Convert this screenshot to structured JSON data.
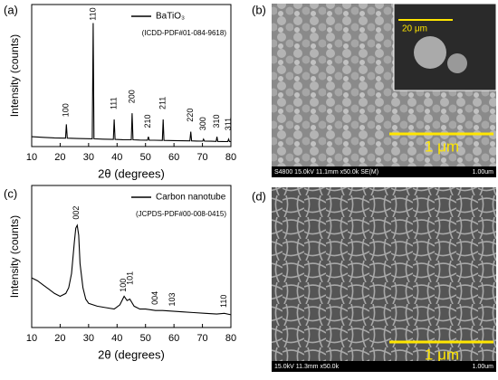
{
  "chart_data": [
    {
      "type": "line",
      "xlabel": "2θ (degrees)",
      "ylabel": "Intensity (counts)",
      "note": "(ICDD-PDF#01-084-9618)",
      "legend": "upper right",
      "xlim": [
        10,
        80
      ],
      "xticks": [
        10,
        20,
        30,
        40,
        50,
        60,
        70,
        80
      ],
      "ylim": [
        0,
        115
      ],
      "x": [
        10,
        14,
        18,
        21.9,
        22.2,
        22.5,
        26,
        31.3,
        31.6,
        31.9,
        35,
        38.7,
        39.0,
        39.3,
        42,
        45.0,
        45.3,
        45.6,
        48,
        50.7,
        51.0,
        51.3,
        53,
        55.9,
        56.2,
        56.5,
        60,
        65.6,
        65.9,
        66.2,
        68,
        70.1,
        70.4,
        70.7,
        73,
        74.8,
        75.1,
        75.4,
        77,
        78.9,
        79.2,
        79.5,
        80
      ],
      "series": [
        {
          "name": "BaTiO₃",
          "color": "#000000",
          "values": [
            8,
            7.5,
            7,
            6.8,
            18,
            6.8,
            6.5,
            6.3,
            100,
            6.3,
            6,
            5.8,
            22,
            5.8,
            5.6,
            5.5,
            27,
            5.5,
            5.3,
            5.2,
            8,
            5.2,
            5.1,
            5,
            22,
            5,
            4.8,
            4.6,
            12,
            4.6,
            4.5,
            4.4,
            6,
            4.4,
            4.3,
            4.2,
            8,
            4.2,
            4.1,
            4,
            6,
            4,
            4
          ]
        }
      ],
      "annotations": [
        {
          "text": "100",
          "x": 22.2,
          "y": 24
        },
        {
          "text": "110",
          "x": 31.6,
          "y": 102
        },
        {
          "text": "111",
          "x": 39,
          "y": 30
        },
        {
          "text": "200",
          "x": 45.3,
          "y": 35
        },
        {
          "text": "210",
          "x": 51,
          "y": 15
        },
        {
          "text": "211",
          "x": 56.2,
          "y": 30
        },
        {
          "text": "220",
          "x": 65.9,
          "y": 20
        },
        {
          "text": "300",
          "x": 70.4,
          "y": 13
        },
        {
          "text": "310",
          "x": 75.1,
          "y": 15
        },
        {
          "text": "311",
          "x": 79.2,
          "y": 13
        }
      ]
    },
    {
      "type": "line",
      "xlabel": "2θ (degrees)",
      "ylabel": "Intensity (counts)",
      "note": "(JCPDS-PDF#00-008-0415)",
      "legend": "upper right",
      "xlim": [
        10,
        80
      ],
      "xticks": [
        10,
        20,
        30,
        40,
        50,
        60,
        70,
        80
      ],
      "ylim": [
        0,
        100
      ],
      "x": [
        10,
        12,
        14,
        16,
        18,
        20,
        22,
        23,
        24,
        25,
        25.5,
        26,
        26.5,
        27,
        28,
        29,
        30,
        33,
        36,
        39,
        41,
        42.5,
        43.5,
        44.5,
        46,
        48,
        50,
        53.5,
        56,
        59.5,
        63,
        67,
        71,
        75,
        77.7,
        80
      ],
      "series": [
        {
          "name": "Carbon nanotube",
          "color": "#000000",
          "values": [
            35,
            33,
            30,
            27,
            24,
            22,
            24,
            28,
            38,
            60,
            70,
            72,
            65,
            45,
            28,
            20,
            17,
            15,
            14,
            13,
            16,
            22,
            19,
            20,
            15,
            13,
            13,
            12,
            12,
            11.5,
            11,
            10.5,
            10,
            9.5,
            10,
            9
          ]
        }
      ],
      "annotations": [
        {
          "text": "002",
          "x": 25.8,
          "y": 76
        },
        {
          "text": "100",
          "x": 42.3,
          "y": 25
        },
        {
          "text": "101",
          "x": 44.8,
          "y": 30
        },
        {
          "text": "004",
          "x": 53.5,
          "y": 16
        },
        {
          "text": "103",
          "x": 59.5,
          "y": 15
        },
        {
          "text": "110",
          "x": 77.7,
          "y": 14
        }
      ]
    }
  ],
  "panel_labels": [
    "(a)",
    "(b)",
    "(c)",
    "(d)"
  ],
  "images": [
    {
      "scale_bar": "1 μm",
      "info": "S4800 15.0kV 11.1mm x50.0k SE(M)",
      "scale": "1.00um",
      "inset_scale": "20 μm"
    },
    {
      "scale_bar": "1 μm",
      "info": "15.0kV 11.3mm x50.0k",
      "scale": "1.00um"
    }
  ]
}
